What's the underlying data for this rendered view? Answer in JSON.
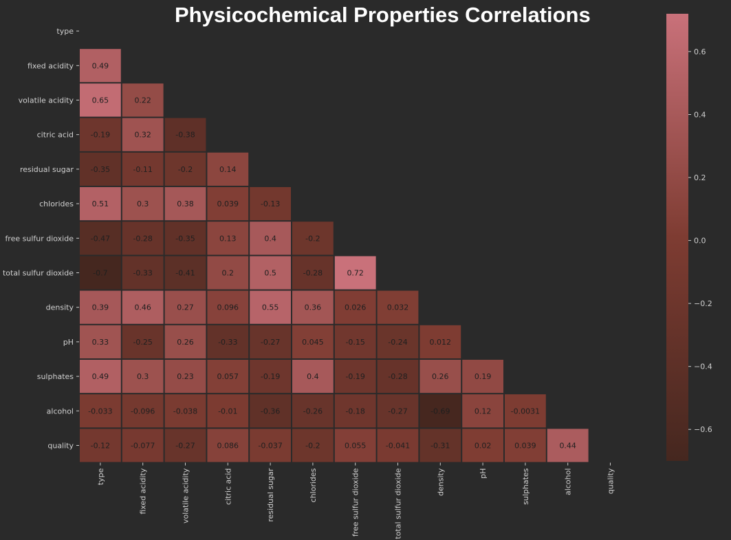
{
  "chart_data": {
    "type": "heatmap",
    "title": "Physicochemical Properties Correlations",
    "variables": [
      "type",
      "fixed acidity",
      "volatile acidity",
      "citric acid",
      "residual sugar",
      "chlorides",
      "free sulfur dioxide",
      "total sulfur dioxide",
      "density",
      "pH",
      "sulphates",
      "alcohol",
      "quality"
    ],
    "mask": "upper-triangle-including-diagonal",
    "lower_triangle_values": [
      [],
      [
        "0.49"
      ],
      [
        "0.65",
        "0.22"
      ],
      [
        "-0.19",
        "0.32",
        "-0.38"
      ],
      [
        "-0.35",
        "-0.11",
        "-0.2",
        "0.14"
      ],
      [
        "0.51",
        "0.3",
        "0.38",
        "0.039",
        "-0.13"
      ],
      [
        "-0.47",
        "-0.28",
        "-0.35",
        "0.13",
        "0.4",
        "-0.2"
      ],
      [
        "-0.7",
        "-0.33",
        "-0.41",
        "0.2",
        "0.5",
        "-0.28",
        "0.72"
      ],
      [
        "0.39",
        "0.46",
        "0.27",
        "0.096",
        "0.55",
        "0.36",
        "0.026",
        "0.032"
      ],
      [
        "0.33",
        "-0.25",
        "0.26",
        "-0.33",
        "-0.27",
        "0.045",
        "-0.15",
        "-0.24",
        "0.012"
      ],
      [
        "0.49",
        "0.3",
        "0.23",
        "0.057",
        "-0.19",
        "0.4",
        "-0.19",
        "-0.28",
        "0.26",
        "0.19"
      ],
      [
        "-0.033",
        "-0.096",
        "-0.038",
        "-0.01",
        "-0.36",
        "-0.26",
        "-0.18",
        "-0.27",
        "-0.69",
        "0.12",
        "-0.0031"
      ],
      [
        "-0.12",
        "-0.077",
        "-0.27",
        "0.086",
        "-0.037",
        "-0.2",
        "0.055",
        "-0.041",
        "-0.31",
        "0.02",
        "0.039",
        "0.44"
      ]
    ],
    "colorbar": {
      "range": [
        -0.7,
        0.72
      ],
      "ticks": [
        0.6,
        0.4,
        0.2,
        0.0,
        -0.2,
        -0.4,
        -0.6
      ],
      "tick_labels": [
        "0.6",
        "0.4",
        "0.2",
        "0.0",
        "−0.2",
        "−0.4",
        "−0.6"
      ],
      "low_color": "#45271f",
      "mid_color": "#7e3c32",
      "high_color": "#c9717a"
    },
    "legend_placement": "right"
  },
  "colors": {
    "background": "#2a2a2a",
    "tick_label": "#d0d0d0",
    "cell_text": "#1f1f1f",
    "title": "#ffffff"
  }
}
